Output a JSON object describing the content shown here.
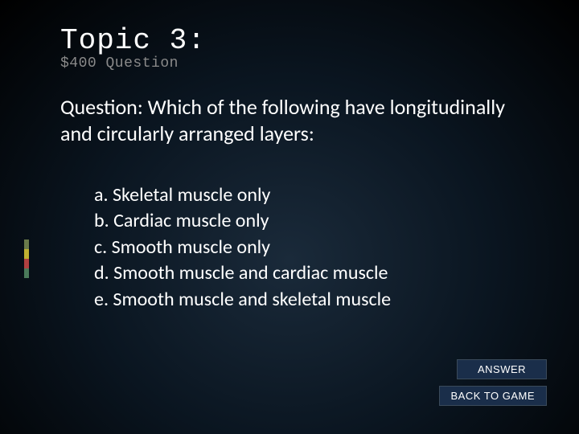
{
  "header": {
    "title": "Topic 3:",
    "subtitle": "$400 Question"
  },
  "question": {
    "text": "Question: Which of the following have longitudinally and circularly arranged layers:"
  },
  "options": [
    "a. Skeletal muscle only",
    "b. Cardiac muscle only",
    "c. Smooth muscle only",
    "d. Smooth muscle and cardiac muscle",
    "e. Smooth muscle and skeletal muscle"
  ],
  "buttons": {
    "answer": "ANSWER",
    "back": "BACK TO GAME"
  },
  "accent_colors": [
    "#6a7a4a",
    "#c0b030",
    "#b04040",
    "#4a7a5a"
  ],
  "accent_heights": [
    12,
    12,
    12,
    12
  ]
}
